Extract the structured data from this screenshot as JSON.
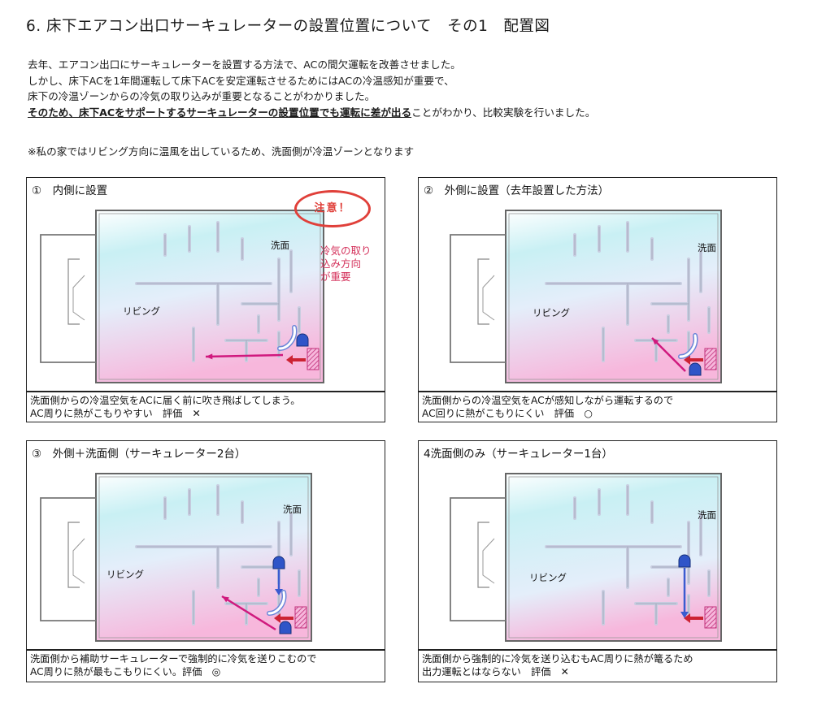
{
  "title": "6. 床下エアコン出口サーキュレーターの設置位置について　その1　配置図",
  "intro": {
    "line1": "去年、エアコン出口にサーキュレーターを設置する方法で、ACの間欠運転を改善させました。",
    "line2": "しかし、床下ACを1年間運転して床下ACを安定運転させるためにはACの冷温感知が重要で、",
    "line3": "床下の冷温ゾーンからの冷気の取り込みが重要となることがわかりました。",
    "line4_emphasis": "そのため、床下ACをサポートするサーキュレーターの設置位置でも運転に差が出る",
    "line4_rest": "ことがわかり、比較実験を行いました。"
  },
  "note": "※私の家ではリビング方向に温風を出しているため、洗面側が冷温ゾーンとなります",
  "room_labels": {
    "living": "リビング",
    "washroom": "洗面"
  },
  "panels": [
    {
      "title": "①　内側に設置",
      "caption1": "洗面側からの冷温空気をACに届く前に吹き飛ばしてしまう。",
      "caption2": "AC周りに熱がこもりやすい　評価　✕",
      "attention": "注意！",
      "red_note1": "冷気の取り",
      "red_note2": "込み方向",
      "red_note3": "が重要"
    },
    {
      "title": "②　外側に設置（去年設置した方法）",
      "caption1": "洗面側からの冷温空気をACが感知しながら運転するので",
      "caption2": "AC回りに熱がこもりにくい　評価　○"
    },
    {
      "title": "③　外側＋洗面側（サーキュレーター2台）",
      "caption1": "洗面側から補助サーキュレーターで強制的に冷気を送りこむので",
      "caption2": "AC周りに熱が最もこもりにくい。評価　◎"
    },
    {
      "title": "4洗面側のみ（サーキュレーター1台）",
      "caption1": "洗面側から強制的に冷気を送り込むもAC周りに熱が篭るため",
      "caption2": "出力運転とはならない　評価　✕"
    }
  ],
  "colors": {
    "cool": "#c9f0f4",
    "warm": "#f7b7dc",
    "arrow": "#d0197e",
    "circulator": "#2f55c8",
    "ac_hatch": "#c0307a",
    "attention": "#e0403a"
  }
}
